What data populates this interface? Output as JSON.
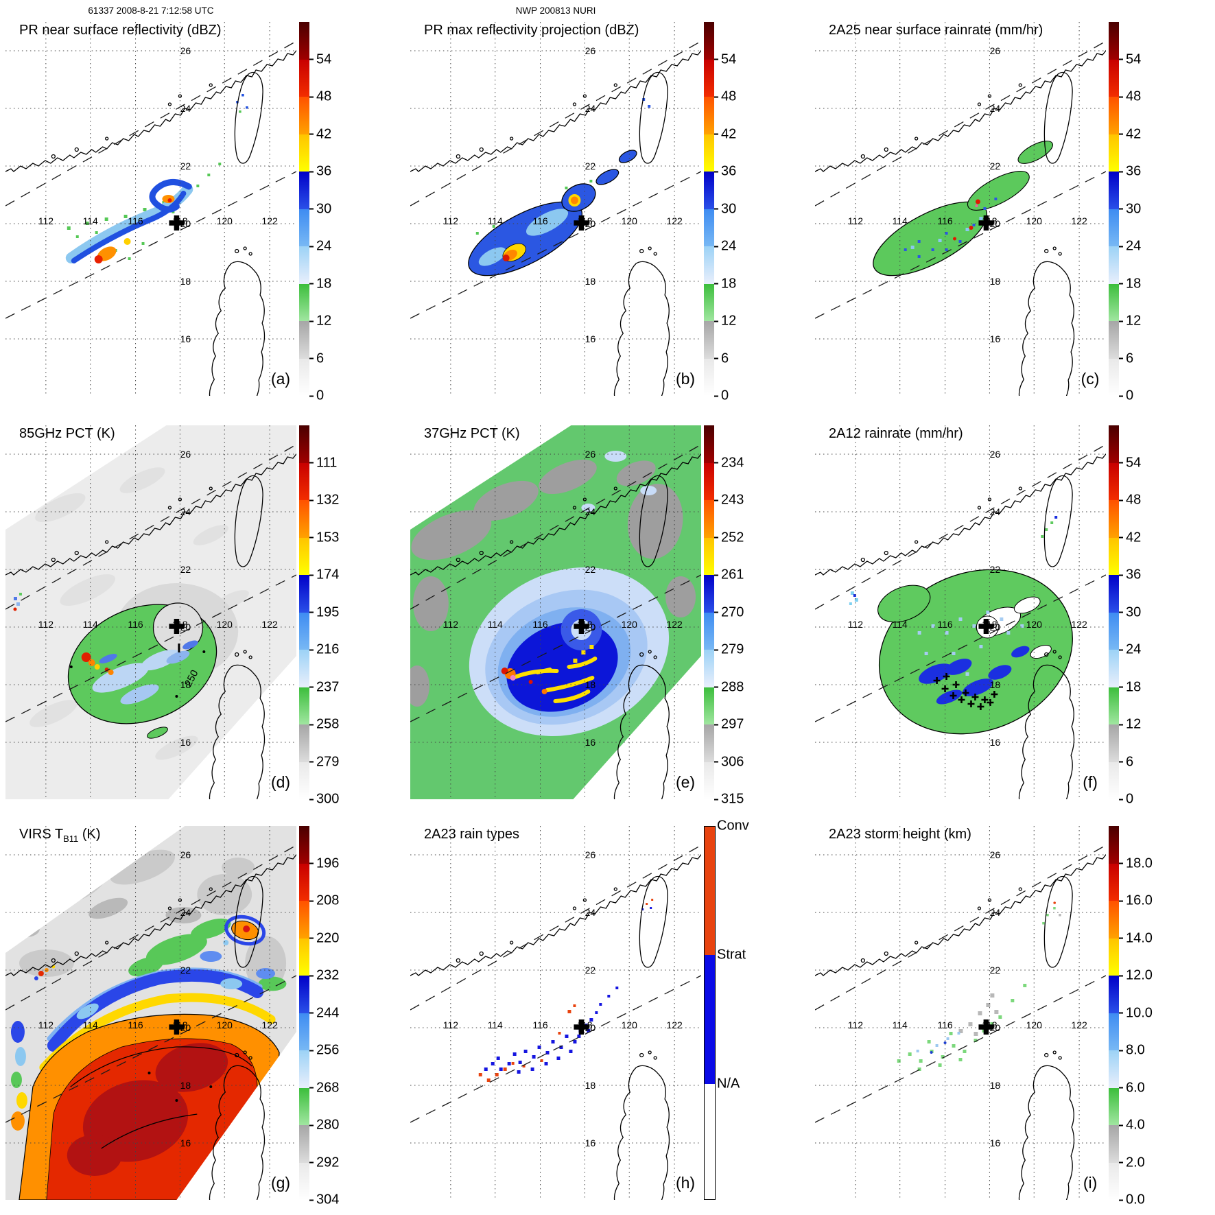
{
  "header": {
    "scan_info": "61337 2008-8-21 7:12:58 UTC",
    "storm_info": "NWP 200813 NURI"
  },
  "map": {
    "lon_labels": [
      "112",
      "114",
      "116",
      "118",
      "120",
      "122"
    ],
    "lat_labels": [
      "26",
      "24",
      "22",
      "20",
      "18",
      "16"
    ],
    "center_marker": "+"
  },
  "palette": {
    "rainbow_blocks": [
      [
        "#ffffff",
        "#e9e9e9"
      ],
      [
        "#dcdcdc",
        "#a6a6a6"
      ],
      [
        "#a0e6a0",
        "#3cbe3c"
      ],
      [
        "#e9effc",
        "#9cd2f6"
      ],
      [
        "#78b8f4",
        "#3e8cf2"
      ],
      [
        "#2a50e8",
        "#0000c8"
      ],
      [
        "#ffff00",
        "#ffc400"
      ],
      [
        "#ffa200",
        "#ff5200"
      ],
      [
        "#f22d00",
        "#c80000"
      ],
      [
        "#a00000",
        "#4a0000"
      ]
    ],
    "conv_color": "#e8430f",
    "strat_color": "#0a0ae6",
    "na_color": "#ffffff"
  },
  "chart_data": {
    "type": "heatmap",
    "layout": "3x3 satellite map panels with vertical colorbars",
    "lon_ticks": [
      112,
      114,
      116,
      118,
      120,
      122
    ],
    "lat_ticks": [
      26,
      24,
      22,
      20,
      18,
      16
    ],
    "grid": true,
    "panels": [
      {
        "id": "a",
        "label": "(a)",
        "title": "PR near surface reflectivity (dBZ)",
        "units": "dBZ",
        "colorbar": {
          "type": "rainbow",
          "ticks": [
            "54",
            "48",
            "42",
            "36",
            "30",
            "24",
            "18",
            "12",
            "6",
            "0"
          ]
        }
      },
      {
        "id": "b",
        "label": "(b)",
        "title": "PR max reflectivity projection (dBZ)",
        "units": "dBZ",
        "colorbar": {
          "type": "rainbow",
          "ticks": [
            "54",
            "48",
            "42",
            "36",
            "30",
            "24",
            "18",
            "12",
            "6",
            "0"
          ]
        }
      },
      {
        "id": "c",
        "label": "(c)",
        "title": "2A25 near surface rainrate (mm/hr)",
        "units": "mm/hr",
        "colorbar": {
          "type": "rainbow",
          "ticks": [
            "54",
            "48",
            "42",
            "36",
            "30",
            "24",
            "18",
            "12",
            "6",
            "0"
          ]
        }
      },
      {
        "id": "d",
        "label": "(d)",
        "title": "85GHz PCT (K)",
        "units": "K",
        "contour_label": "250",
        "colorbar": {
          "type": "rainbow",
          "ticks": [
            "111",
            "132",
            "153",
            "174",
            "195",
            "216",
            "237",
            "258",
            "279",
            "300"
          ]
        }
      },
      {
        "id": "e",
        "label": "(e)",
        "title": "37GHz PCT (K)",
        "units": "K",
        "colorbar": {
          "type": "rainbow",
          "ticks": [
            "234",
            "243",
            "252",
            "261",
            "270",
            "279",
            "288",
            "297",
            "306",
            "315"
          ]
        }
      },
      {
        "id": "f",
        "label": "(f)",
        "title": "2A12 rainrate (mm/hr)",
        "units": "mm/hr",
        "colorbar": {
          "type": "rainbow",
          "ticks": [
            "54",
            "48",
            "42",
            "36",
            "30",
            "24",
            "18",
            "12",
            "6",
            "0"
          ]
        }
      },
      {
        "id": "g",
        "label": "(g)",
        "title_main": "VIRS T",
        "title_sub": "B11",
        "title_suffix": " (K)",
        "units": "K",
        "colorbar": {
          "type": "rainbow",
          "ticks": [
            "196",
            "208",
            "220",
            "232",
            "244",
            "256",
            "268",
            "280",
            "292",
            "304"
          ]
        }
      },
      {
        "id": "h",
        "label": "(h)",
        "title": "2A23 rain types",
        "units": "category",
        "colorbar": {
          "type": "categorical",
          "categories": [
            {
              "label": "Conv",
              "color": "#e8430f"
            },
            {
              "label": "Strat",
              "color": "#0a0ae6"
            },
            {
              "label": "N/A",
              "color": "#ffffff"
            }
          ]
        }
      },
      {
        "id": "i",
        "label": "(i)",
        "title": "2A23 storm height (km)",
        "units": "km",
        "colorbar": {
          "type": "rainbow",
          "ticks": [
            "18.0",
            "16.0",
            "14.0",
            "12.0",
            "10.0",
            "8.0",
            "6.0",
            "4.0",
            "2.0",
            "0.0"
          ]
        }
      }
    ]
  }
}
